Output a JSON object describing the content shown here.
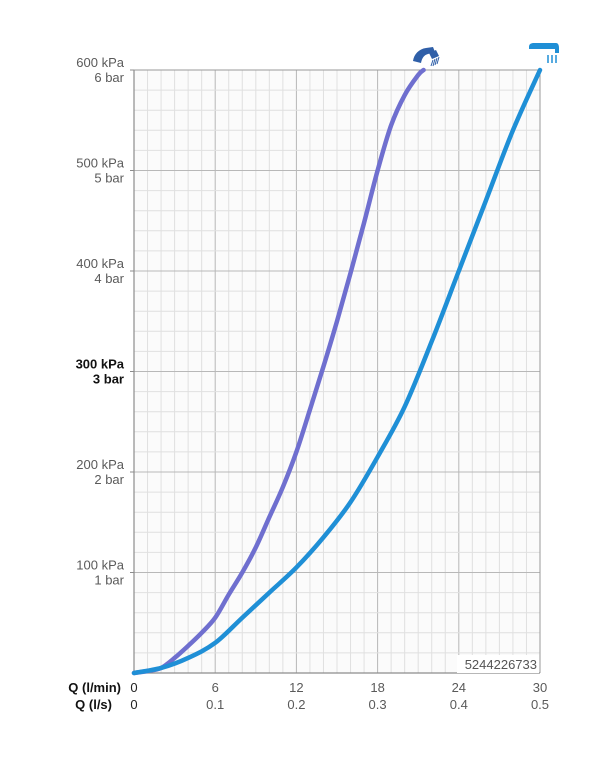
{
  "chart_data": {
    "type": "line",
    "product_code": "5244226733",
    "x_label_primary": "Q (l/min)",
    "x_label_secondary": "Q (l/s)",
    "x_ticks": [
      {
        "lpm": 0,
        "lpm_label": "0",
        "lps_label": "0"
      },
      {
        "lpm": 6,
        "lpm_label": "6",
        "lps_label": "0.1"
      },
      {
        "lpm": 12,
        "lpm_label": "12",
        "lps_label": "0.2"
      },
      {
        "lpm": 18,
        "lpm_label": "18",
        "lps_label": "0.3"
      },
      {
        "lpm": 24,
        "lpm_label": "24",
        "lps_label": "0.4"
      },
      {
        "lpm": 30,
        "lpm_label": "30",
        "lps_label": "0.5"
      }
    ],
    "y_ticks": [
      {
        "kpa": 600,
        "kpa_label": "600 kPa",
        "bar_label": "6 bar",
        "bold": false
      },
      {
        "kpa": 500,
        "kpa_label": "500 kPa",
        "bar_label": "5 bar",
        "bold": false
      },
      {
        "kpa": 400,
        "kpa_label": "400 kPa",
        "bar_label": "4 bar",
        "bold": false
      },
      {
        "kpa": 300,
        "kpa_label": "300 kPa",
        "bar_label": "3 bar",
        "bold": true
      },
      {
        "kpa": 200,
        "kpa_label": "200 kPa",
        "bar_label": "2 bar",
        "bold": false
      },
      {
        "kpa": 100,
        "kpa_label": "100 kPa",
        "bar_label": "1 bar",
        "bold": false
      }
    ],
    "xlim": [
      0,
      30
    ],
    "ylim": [
      0,
      600
    ],
    "grid": true,
    "series": [
      {
        "icon": "hand-shower-icon",
        "color": "#6f6fcf",
        "x": [
          0,
          1,
          2,
          3,
          4,
          5,
          6,
          7,
          8,
          9,
          10,
          11,
          12,
          13,
          14,
          15,
          16,
          17,
          18,
          19,
          20,
          21,
          21.4
        ],
        "y": [
          0,
          2,
          5,
          15,
          27,
          40,
          55,
          78,
          100,
          125,
          155,
          185,
          220,
          262,
          305,
          350,
          398,
          448,
          500,
          545,
          575,
          595,
          600
        ]
      },
      {
        "icon": "overhead-shower-icon",
        "color": "#1f8fd6",
        "x": [
          0,
          2,
          4,
          6,
          8,
          10,
          12,
          14,
          16,
          18,
          20,
          22,
          24,
          26,
          28,
          30
        ],
        "y": [
          0,
          5,
          15,
          30,
          55,
          80,
          105,
          135,
          170,
          215,
          265,
          330,
          400,
          470,
          540,
          600
        ]
      }
    ]
  }
}
